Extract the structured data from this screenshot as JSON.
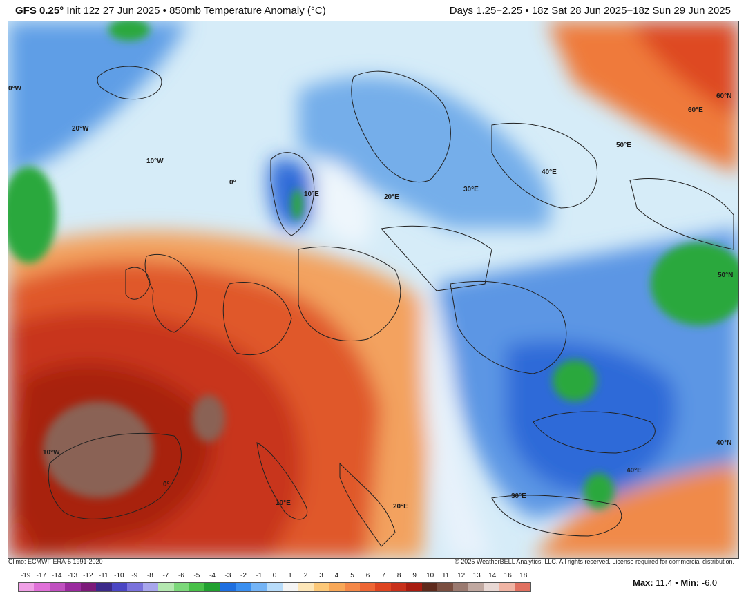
{
  "header": {
    "model": "GFS 0.25°",
    "subtitle": "Init 12z 27 Jun 2025 • 850mb Temperature Anomaly (°C)",
    "valid": "Days 1.25−2.25 • 18z Sat 28 Jun 2025−18z Sun 29 Jun 2025"
  },
  "credits": {
    "climo": "Climo: ECMWF ERA-5 1991-2020",
    "copyright": "© 2025 WeatherBELL Analytics, LLC. All rights reserved. License required for commercial distribution."
  },
  "map": {
    "labels": [
      "0°W",
      "20°W",
      "10°W",
      "0°",
      "10°E",
      "20°E",
      "30°E",
      "40°E",
      "50°E",
      "60°E",
      "60°N",
      "50°N",
      "40°N",
      "40°E",
      "30°E",
      "20°E",
      "10°E",
      "0°",
      "10°W"
    ],
    "colors": {
      "ocean_cold": "#9ec7ec",
      "cold_blue": "#3d7fd6",
      "cold_deep": "#2559c8",
      "green": "#28a840",
      "warm_orange": "#f3a25e",
      "warm_red": "#d2401c",
      "hot_red": "#b5230f",
      "hot_brown": "#866055"
    }
  },
  "legend": {
    "ticks": [
      "-19",
      "-17",
      "-14",
      "-13",
      "-12",
      "-11",
      "-10",
      "-9",
      "-8",
      "-7",
      "-6",
      "-5",
      "-4",
      "-3",
      "-2",
      "-1",
      "0",
      "1",
      "2",
      "3",
      "4",
      "5",
      "6",
      "7",
      "8",
      "9",
      "10",
      "11",
      "12",
      "13",
      "14",
      "16",
      "18"
    ],
    "colors": [
      "#f0a0e6",
      "#e070d8",
      "#c050c0",
      "#9a2a9e",
      "#7c1a7a",
      "#3c2a8a",
      "#4b46c4",
      "#7a72dc",
      "#a8a6ec",
      "#b4e8b0",
      "#7cd87a",
      "#48c048",
      "#21a030",
      "#1e6fe0",
      "#3a8ff0",
      "#74b4f6",
      "#b8dcfa",
      "#f4f4f4",
      "#fde6b8",
      "#fcc878",
      "#f8a858",
      "#f48848",
      "#ee6634",
      "#de4420",
      "#c8301a",
      "#a81c10",
      "#5e2a1c",
      "#7a4e40",
      "#9a7a70",
      "#c0a8a0",
      "#e8d8d4",
      "#f0b4a4",
      "#e07060"
    ]
  },
  "stats": {
    "max_label": "Max:",
    "max": "11.4",
    "min_label": "Min:",
    "min": "-6.0"
  }
}
